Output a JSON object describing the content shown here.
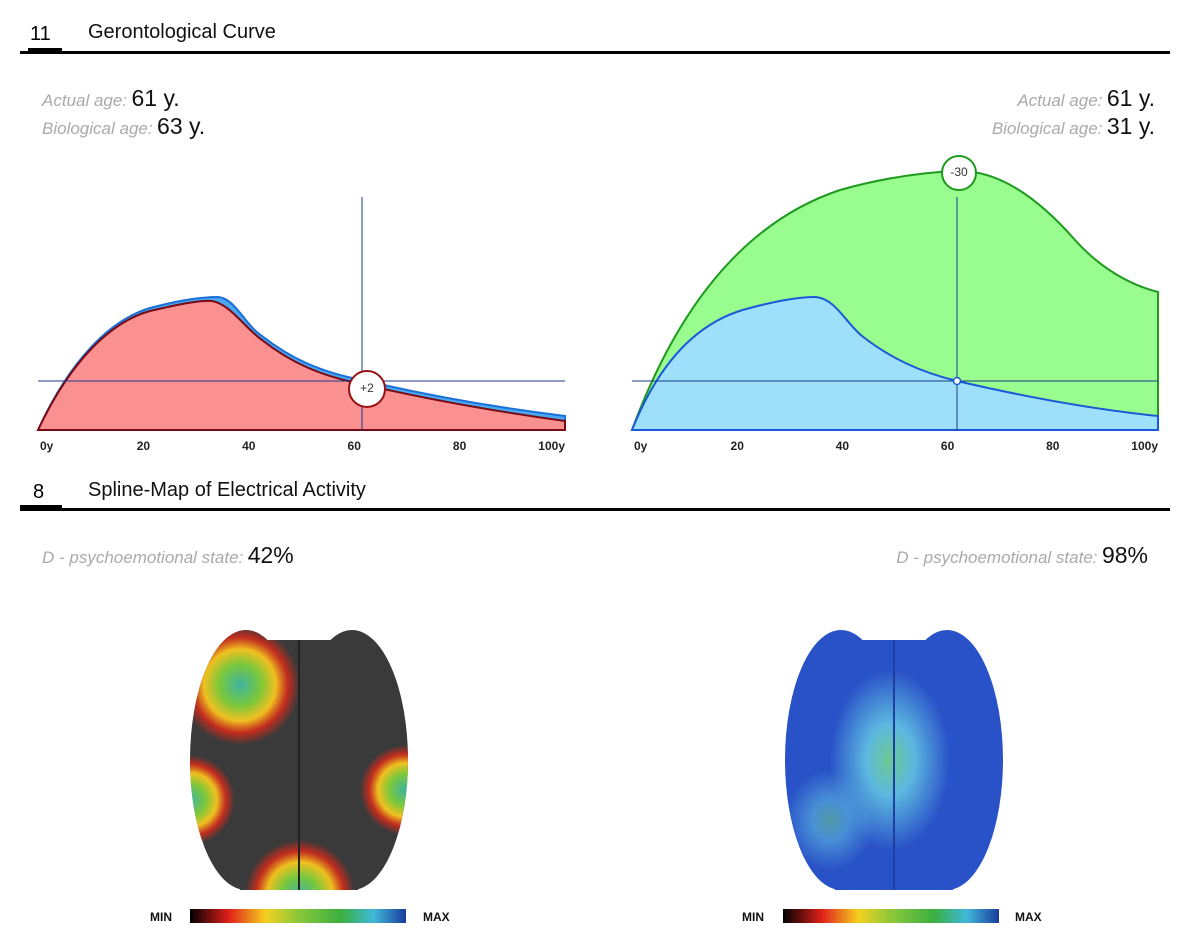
{
  "sections": [
    {
      "number": "11",
      "title": "Gerontological Curve",
      "panels": [
        {
          "actual_label": "Actual age:",
          "actual_value": "61 y.",
          "bio_label": "Biological age:",
          "bio_value": "63 y.",
          "marker": "+2",
          "axis_labels": [
            "0y",
            "20",
            "40",
            "60",
            "80",
            "100y"
          ]
        },
        {
          "actual_label": "Actual age:",
          "actual_value": "61 y.",
          "bio_label": "Biological age:",
          "bio_value": "31 y.",
          "marker": "-30",
          "axis_labels": [
            "0y",
            "20",
            "40",
            "60",
            "80",
            "100y"
          ]
        }
      ]
    },
    {
      "number": "8",
      "title": "Spline-Map of Electrical Activity",
      "panels": [
        {
          "label": "D - psychoemotional state:",
          "value": "42%",
          "scale_min": "MIN",
          "scale_max": "MAX"
        },
        {
          "label": "D - psychoemotional state:",
          "value": "98%",
          "scale_min": "MIN",
          "scale_max": "MAX"
        }
      ]
    }
  ]
}
